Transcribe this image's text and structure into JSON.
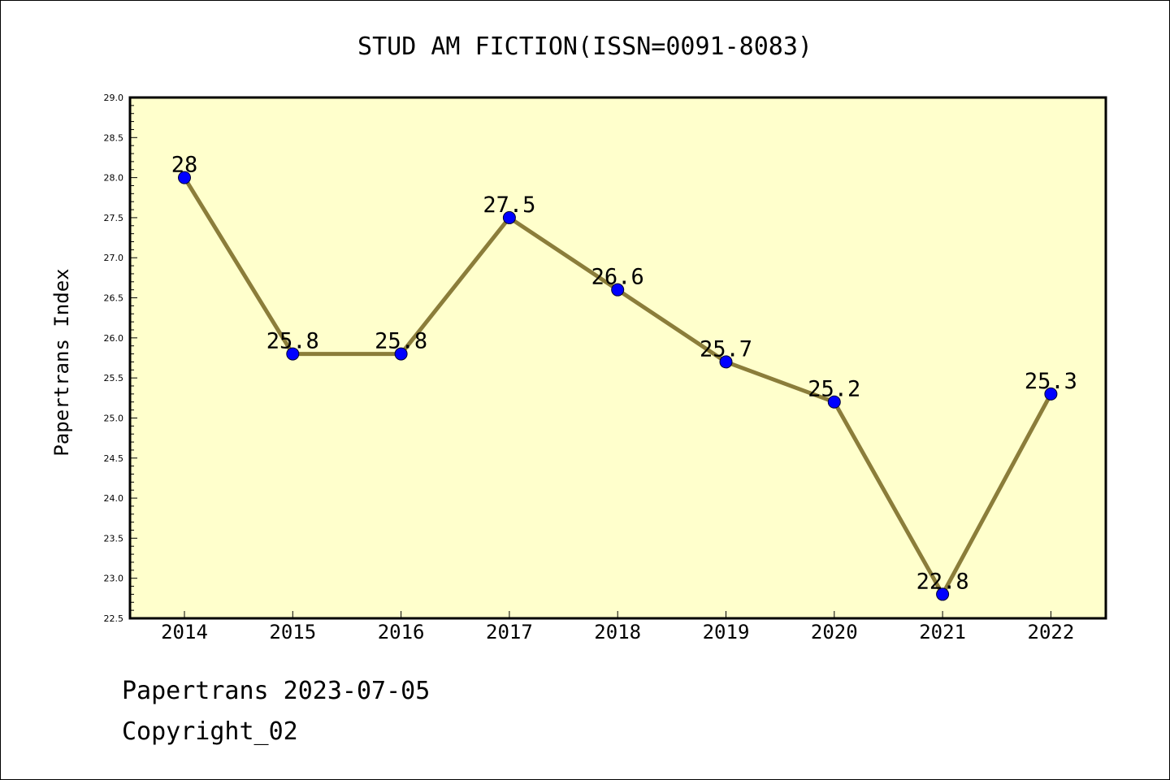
{
  "chart_data": {
    "type": "line",
    "title": "STUD AM FICTION(ISSN=0091-8083)",
    "ylabel": "Papertrans Index",
    "xlabel": "",
    "categories": [
      "2014",
      "2015",
      "2016",
      "2017",
      "2018",
      "2019",
      "2020",
      "2021",
      "2022"
    ],
    "values": [
      28,
      25.8,
      25.8,
      27.5,
      26.6,
      25.7,
      25.2,
      22.8,
      25.3
    ],
    "data_labels": [
      "28",
      "25.8",
      "25.8",
      "27.5",
      "26.6",
      "25.7",
      "25.2",
      "22.8",
      "25.3"
    ],
    "ylim": [
      22.5,
      29.0
    ],
    "yticks": [
      "22.5",
      "23.0",
      "23.5",
      "24.0",
      "24.5",
      "25.0",
      "25.5",
      "26.0",
      "26.5",
      "27.0",
      "27.5",
      "28.0",
      "28.5",
      "29.0"
    ],
    "grid": false,
    "colors": {
      "plot_background": "#ffffcc",
      "line": "#8b7d3a",
      "marker": "#0000ff"
    }
  },
  "footer": {
    "line1": "Papertrans 2023-07-05",
    "line2": "Copyright_02"
  }
}
